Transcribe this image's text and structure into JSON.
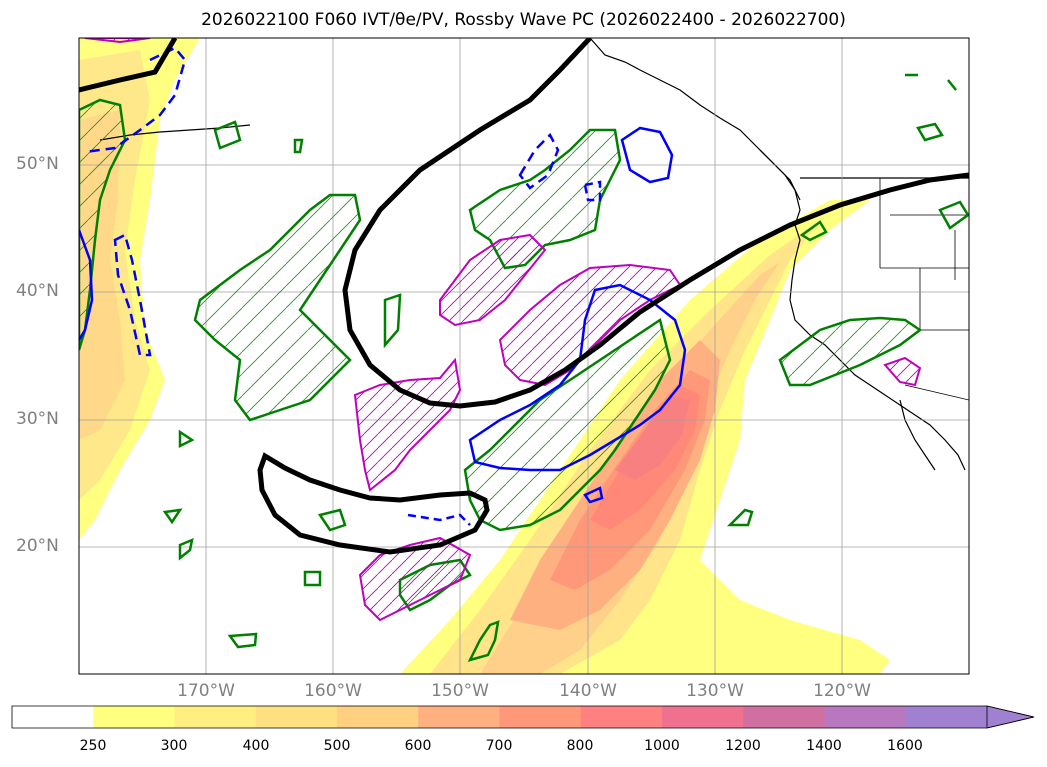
{
  "title": "2026022100 F060 IVT/θe/PV, Rossby Wave PC (2026022400 - 2026022700)",
  "latitude_labels": [
    "50°N",
    "40°N",
    "30°N",
    "20°N"
  ],
  "longitude_labels": [
    "170°W",
    "160°W",
    "150°W",
    "140°W",
    "130°W",
    "120°W"
  ],
  "colorbar": {
    "levels": [
      "250",
      "300",
      "400",
      "500",
      "600",
      "700",
      "800",
      "1000",
      "1200",
      "1400",
      "1600"
    ],
    "colors": [
      "#ffffff",
      "#ffff80",
      "#ffef80",
      "#ffe080",
      "#ffd080",
      "#ffb080",
      "#ff9878",
      "#ff8080",
      "#f07090",
      "#d070a0",
      "#b878c0",
      "#a080d0"
    ],
    "extend": "max"
  },
  "legend_colors": {
    "black_contour": "#000000",
    "green_contour": "#008000",
    "magenta_contour": "#c000c0",
    "blue_contour": "#0000ff"
  }
}
